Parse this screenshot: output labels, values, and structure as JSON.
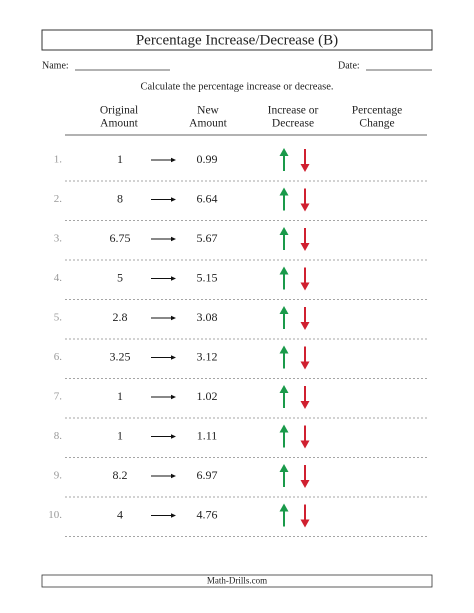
{
  "header": {
    "title": "Percentage Increase/Decrease (B)",
    "name_label": "Name:",
    "date_label": "Date:"
  },
  "instruction": "Calculate the percentage increase or decrease.",
  "columns": [
    [
      "Original",
      "Amount"
    ],
    [
      "New",
      "Amount"
    ],
    [
      "Increase or",
      "Decrease"
    ],
    [
      "Percentage",
      "Change"
    ]
  ],
  "rows": [
    [
      "1.",
      "1",
      "0.99"
    ],
    [
      "2.",
      "8",
      "6.64"
    ],
    [
      "3.",
      "6.75",
      "5.67"
    ],
    [
      "4.",
      "5",
      "5.15"
    ],
    [
      "5.",
      "2.8",
      "3.08"
    ],
    [
      "6.",
      "3.25",
      "3.12"
    ],
    [
      "7.",
      "1",
      "1.02"
    ],
    [
      "8.",
      "1",
      "1.11"
    ],
    [
      "9.",
      "8.2",
      "6.97"
    ],
    [
      "10.",
      "4",
      "4.76"
    ]
  ],
  "footer": "Math-Drills.com"
}
